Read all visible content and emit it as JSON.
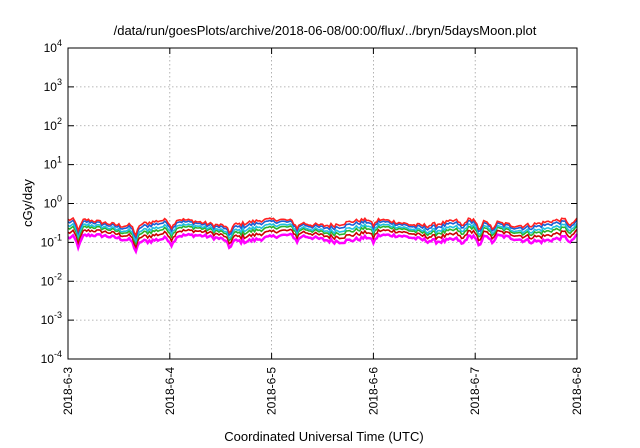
{
  "chart_data": {
    "type": "line",
    "title": "/data/run/goesPlots/archive/2018-06-08/00:00/flux/../bryn/5daysMoon.plot",
    "xlabel": "Coordinated Universal Time (UTC)",
    "ylabel": "cGy/day",
    "yscale": "log",
    "ylim": [
      0.0001,
      10000
    ],
    "y_ticks": [
      {
        "base": "10",
        "exp": "-4",
        "value": 0.0001
      },
      {
        "base": "10",
        "exp": "-3",
        "value": 0.001
      },
      {
        "base": "10",
        "exp": "-2",
        "value": 0.01
      },
      {
        "base": "10",
        "exp": "-1",
        "value": 0.1
      },
      {
        "base": "10",
        "exp": "0",
        "value": 1
      },
      {
        "base": "10",
        "exp": "1",
        "value": 10
      },
      {
        "base": "10",
        "exp": "2",
        "value": 100
      },
      {
        "base": "10",
        "exp": "3",
        "value": 1000
      },
      {
        "base": "10",
        "exp": "4",
        "value": 10000
      }
    ],
    "xlim": [
      "2018-06-03",
      "2018-06-08"
    ],
    "x_ticks": [
      {
        "label": "2018-6-3",
        "date": "2018-06-03"
      },
      {
        "label": "2018-6-4",
        "date": "2018-06-04"
      },
      {
        "label": "2018-6-5",
        "date": "2018-06-05"
      },
      {
        "label": "2018-6-6",
        "date": "2018-06-06"
      },
      {
        "label": "2018-6-7",
        "date": "2018-06-07"
      },
      {
        "label": "2018-6-8",
        "date": "2018-06-08"
      }
    ],
    "grid": true,
    "series": [
      {
        "color": "#ff00ff",
        "base_value": 0.13
      },
      {
        "color": "#cc0000",
        "base_value": 0.17
      },
      {
        "color": "#2ab32a",
        "base_value": 0.21
      },
      {
        "color": "#20c0e0",
        "base_value": 0.24
      },
      {
        "color": "#1a5fd6",
        "base_value": 0.29
      },
      {
        "color": "#ff2020",
        "base_value": 0.33
      }
    ],
    "dips": [
      {
        "date": "2018-06-03 02:30",
        "factor": 0.5
      },
      {
        "date": "2018-06-03 16:00",
        "factor": 0.55
      },
      {
        "date": "2018-06-04 00:30",
        "factor": 0.6
      },
      {
        "date": "2018-06-04 14:00",
        "factor": 0.65
      },
      {
        "date": "2018-06-05 06:00",
        "factor": 0.7
      },
      {
        "date": "2018-06-06 00:00",
        "factor": 0.7
      },
      {
        "date": "2018-06-06 21:00",
        "factor": 0.65
      },
      {
        "date": "2018-06-07 01:00",
        "factor": 0.45
      },
      {
        "date": "2018-06-07 04:00",
        "factor": 0.6
      },
      {
        "date": "2018-06-07 22:30",
        "factor": 0.65
      }
    ]
  }
}
